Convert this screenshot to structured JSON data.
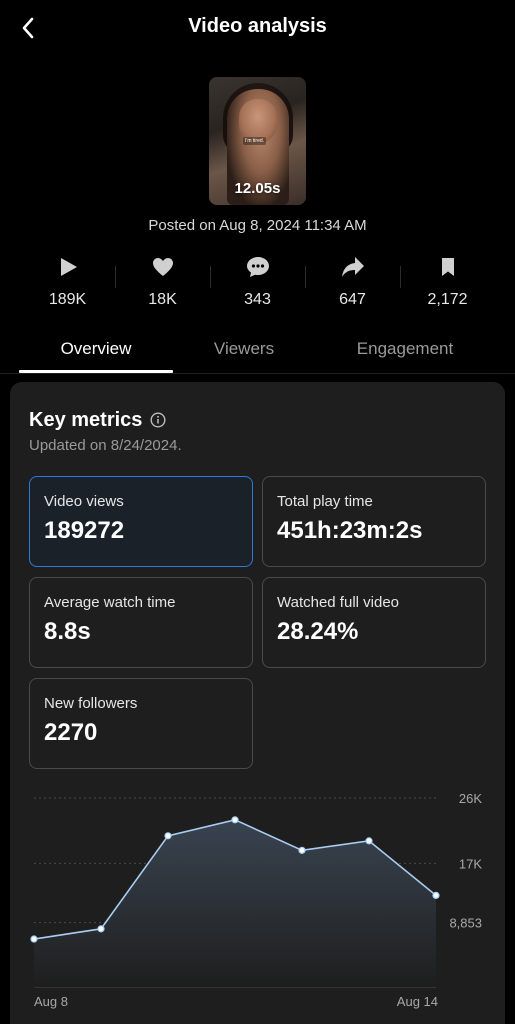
{
  "header": {
    "title": "Video analysis"
  },
  "video": {
    "duration": "12.05s",
    "caption": "I'm tired.",
    "posted": "Posted on Aug 8, 2024 11:34 AM"
  },
  "stats": [
    {
      "icon": "play-icon",
      "value": "189K"
    },
    {
      "icon": "heart-icon",
      "value": "18K"
    },
    {
      "icon": "comment-icon",
      "value": "343"
    },
    {
      "icon": "share-icon",
      "value": "647"
    },
    {
      "icon": "bookmark-icon",
      "value": "2,172"
    }
  ],
  "tabs": [
    {
      "label": "Overview",
      "active": true
    },
    {
      "label": "Viewers",
      "active": false
    },
    {
      "label": "Engagement",
      "active": false
    }
  ],
  "key_metrics": {
    "title": "Key metrics",
    "updated": "Updated on 8/24/2024.",
    "items": [
      {
        "label": "Video views",
        "value": "189272",
        "selected": true
      },
      {
        "label": "Total play time",
        "value": "451h:23m:2s",
        "selected": false
      },
      {
        "label": "Average watch time",
        "value": "8.8s",
        "selected": false
      },
      {
        "label": "Watched full video",
        "value": "28.24%",
        "selected": false
      },
      {
        "label": "New followers",
        "value": "2270",
        "selected": false
      }
    ]
  },
  "colors": {
    "accent": "#2e7ad9",
    "line": "#a9cdf2",
    "background": "#000000",
    "card": "#1e1e1e"
  },
  "chart_data": {
    "type": "area",
    "x": [
      "Aug 8",
      "Aug 9",
      "Aug 10",
      "Aug 11",
      "Aug 12",
      "Aug 13",
      "Aug 14"
    ],
    "values": [
      6600,
      8000,
      20800,
      23000,
      18800,
      20100,
      12600
    ],
    "y_ticks": [
      {
        "value": 8853,
        "label": "8,853"
      },
      {
        "value": 17000,
        "label": "17K"
      },
      {
        "value": 26000,
        "label": "26K"
      }
    ],
    "x_tick_labels": [
      "Aug 8",
      "Aug 14"
    ],
    "ylim": [
      0,
      26000
    ],
    "grid": true
  }
}
